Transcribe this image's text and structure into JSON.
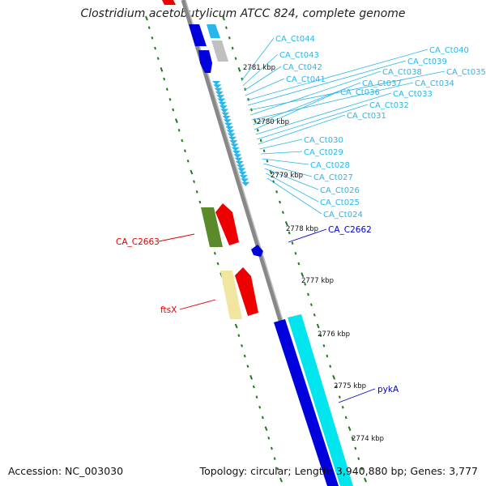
{
  "title": "Clostridium acetobutylicum ATCC 824, complete genome",
  "footer": {
    "accession": "Accession: NC_003030",
    "topology": "Topology: circular; Length: 3,940,880 bp; Genes: 3,777"
  },
  "colors": {
    "backbone": "#888888",
    "ticks": "#1e7a1e",
    "trna_label": "#29b6e8",
    "gene_label_reverse": "#e00000",
    "gene_label_forward": "#0000cc",
    "cds_forward": "#0000dd",
    "cds_forward_light": "#00e5ee",
    "cds_reverse": "#ee0000",
    "cds_other_green": "#5a8a2a",
    "cds_other_yellow": "#f0e6a0"
  },
  "kbp_labels": [
    "2781 kbp",
    "2780 kbp",
    "2779 kbp",
    "2778 kbp",
    "2777 kbp",
    "2776 kbp",
    "2775 kbp",
    "2774 kbp"
  ],
  "trna_labels": [
    "CA_Ct044",
    "CA_Ct043",
    "CA_Ct042",
    "CA_Ct041",
    "CA_Ct040",
    "CA_Ct039",
    "CA_Ct035",
    "CA_Ct038",
    "CA_Ct034",
    "CA_Ct037",
    "CA_Ct036",
    "CA_Ct033",
    "CA_Ct032",
    "CA_Ct031",
    "CA_Ct030",
    "CA_Ct029",
    "CA_Ct028",
    "CA_Ct027",
    "CA_Ct026",
    "CA_Ct025",
    "CA_Ct024"
  ],
  "gene_labels": {
    "ca_c2662": "CA_C2662",
    "ca_c2663": "CA_C2663",
    "ftsx": "ftsX",
    "pyka": "pykA"
  }
}
